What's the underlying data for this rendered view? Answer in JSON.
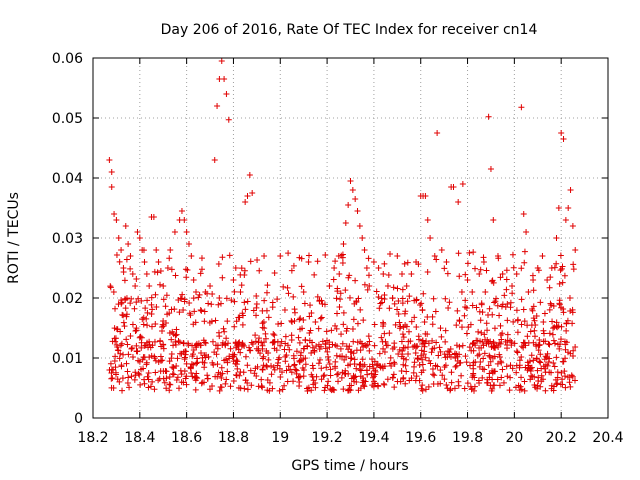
{
  "chart_data": {
    "type": "scatter",
    "title": "Day 206 of 2016, Rate Of TEC Index for receiver cn14",
    "xlabel": "GPS time / hours",
    "ylabel": "ROTI / TECUs",
    "xlim": [
      18.2,
      20.4
    ],
    "ylim": [
      0,
      0.06
    ],
    "xticks": [
      18.2,
      18.4,
      18.6,
      18.8,
      19.0,
      19.2,
      19.4,
      19.6,
      19.8,
      20.0,
      20.2,
      20.4
    ],
    "xtick_labels": [
      "18.2",
      "18.4",
      "18.6",
      "18.8",
      "19",
      "19.2",
      "19.4",
      "19.6",
      "19.8",
      "20",
      "20.2",
      "20.4"
    ],
    "yticks": [
      0,
      0.01,
      0.02,
      0.03,
      0.04,
      0.05,
      0.06
    ],
    "ytick_labels": [
      "0",
      "0.01",
      "0.02",
      "0.03",
      "0.04",
      "0.05",
      "0.06"
    ],
    "grid": true,
    "marker": "plus",
    "color": "#e00000",
    "series": [
      {
        "name": "cn14",
        "points": [
          [
            18.27,
            0.043
          ],
          [
            18.28,
            0.041
          ],
          [
            18.28,
            0.0385
          ],
          [
            18.29,
            0.034
          ],
          [
            18.3,
            0.033
          ],
          [
            18.31,
            0.03
          ],
          [
            18.32,
            0.028
          ],
          [
            18.33,
            0.025
          ],
          [
            18.34,
            0.032
          ],
          [
            18.35,
            0.029
          ],
          [
            18.36,
            0.027
          ],
          [
            18.37,
            0.024
          ],
          [
            18.38,
            0.022
          ],
          [
            18.39,
            0.031
          ],
          [
            18.4,
            0.03
          ],
          [
            18.41,
            0.028
          ],
          [
            18.42,
            0.026
          ],
          [
            18.43,
            0.024
          ],
          [
            18.44,
            0.022
          ],
          [
            18.45,
            0.0335
          ],
          [
            18.46,
            0.0335
          ],
          [
            18.47,
            0.028
          ],
          [
            18.48,
            0.026
          ],
          [
            18.49,
            0.0245
          ],
          [
            18.5,
            0.022
          ],
          [
            18.52,
            0.025
          ],
          [
            18.53,
            0.028
          ],
          [
            18.55,
            0.031
          ],
          [
            18.57,
            0.033
          ],
          [
            18.58,
            0.0345
          ],
          [
            18.59,
            0.033
          ],
          [
            18.6,
            0.031
          ],
          [
            18.61,
            0.029
          ],
          [
            18.62,
            0.027
          ],
          [
            18.63,
            0.023
          ],
          [
            18.64,
            0.021
          ],
          [
            18.66,
            0.018
          ],
          [
            18.68,
            0.021
          ],
          [
            18.7,
            0.022
          ],
          [
            18.72,
            0.043
          ],
          [
            18.73,
            0.052
          ],
          [
            18.74,
            0.0565
          ],
          [
            18.75,
            0.0595
          ],
          [
            18.76,
            0.0565
          ],
          [
            18.77,
            0.054
          ],
          [
            18.78,
            0.0497
          ],
          [
            18.8,
            0.023
          ],
          [
            18.81,
            0.025
          ],
          [
            18.83,
            0.021
          ],
          [
            18.85,
            0.036
          ],
          [
            18.86,
            0.037
          ],
          [
            18.87,
            0.0405
          ],
          [
            18.88,
            0.0375
          ],
          [
            18.9,
            0.019
          ],
          [
            18.93,
            0.016
          ],
          [
            18.97,
            0.014
          ],
          [
            19.0,
            0.027
          ],
          [
            19.02,
            0.018
          ],
          [
            19.05,
            0.016
          ],
          [
            19.1,
            0.021
          ],
          [
            19.15,
            0.016
          ],
          [
            19.18,
            0.019
          ],
          [
            19.21,
            0.022
          ],
          [
            19.23,
            0.025
          ],
          [
            19.25,
            0.027
          ],
          [
            19.27,
            0.029
          ],
          [
            19.28,
            0.0325
          ],
          [
            19.29,
            0.0355
          ],
          [
            19.3,
            0.0395
          ],
          [
            19.31,
            0.038
          ],
          [
            19.32,
            0.0365
          ],
          [
            19.33,
            0.0345
          ],
          [
            19.34,
            0.032
          ],
          [
            19.35,
            0.03
          ],
          [
            19.36,
            0.028
          ],
          [
            19.37,
            0.025
          ],
          [
            19.38,
            0.022
          ],
          [
            19.4,
            0.026
          ],
          [
            19.42,
            0.025
          ],
          [
            19.44,
            0.024
          ],
          [
            19.46,
            0.022
          ],
          [
            19.48,
            0.02
          ],
          [
            19.5,
            0.027
          ],
          [
            19.52,
            0.024
          ],
          [
            19.54,
            0.022
          ],
          [
            19.56,
            0.024
          ],
          [
            19.58,
            0.026
          ],
          [
            19.6,
            0.037
          ],
          [
            19.61,
            0.037
          ],
          [
            19.62,
            0.037
          ],
          [
            19.63,
            0.033
          ],
          [
            19.64,
            0.03
          ],
          [
            19.66,
            0.027
          ],
          [
            19.67,
            0.0475
          ],
          [
            19.69,
            0.028
          ],
          [
            19.71,
            0.026
          ],
          [
            19.73,
            0.0385
          ],
          [
            19.74,
            0.0385
          ],
          [
            19.76,
            0.036
          ],
          [
            19.78,
            0.039
          ],
          [
            19.8,
            0.023
          ],
          [
            19.82,
            0.021
          ],
          [
            19.85,
            0.024
          ],
          [
            19.87,
            0.026
          ],
          [
            19.89,
            0.0502
          ],
          [
            19.9,
            0.0415
          ],
          [
            19.91,
            0.033
          ],
          [
            19.93,
            0.027
          ],
          [
            19.95,
            0.024
          ],
          [
            19.97,
            0.019
          ],
          [
            19.99,
            0.022
          ],
          [
            20.01,
            0.024
          ],
          [
            20.03,
            0.0518
          ],
          [
            20.04,
            0.034
          ],
          [
            20.05,
            0.031
          ],
          [
            20.06,
            0.021
          ],
          [
            20.08,
            0.023
          ],
          [
            20.1,
            0.025
          ],
          [
            20.12,
            0.027
          ],
          [
            20.14,
            0.023
          ],
          [
            20.16,
            0.025
          ],
          [
            20.18,
            0.03
          ],
          [
            20.19,
            0.035
          ],
          [
            20.2,
            0.0475
          ],
          [
            20.21,
            0.0465
          ],
          [
            20.22,
            0.033
          ],
          [
            20.23,
            0.035
          ],
          [
            20.24,
            0.038
          ],
          [
            20.25,
            0.032
          ],
          [
            20.26,
            0.028
          ]
        ]
      }
    ]
  }
}
